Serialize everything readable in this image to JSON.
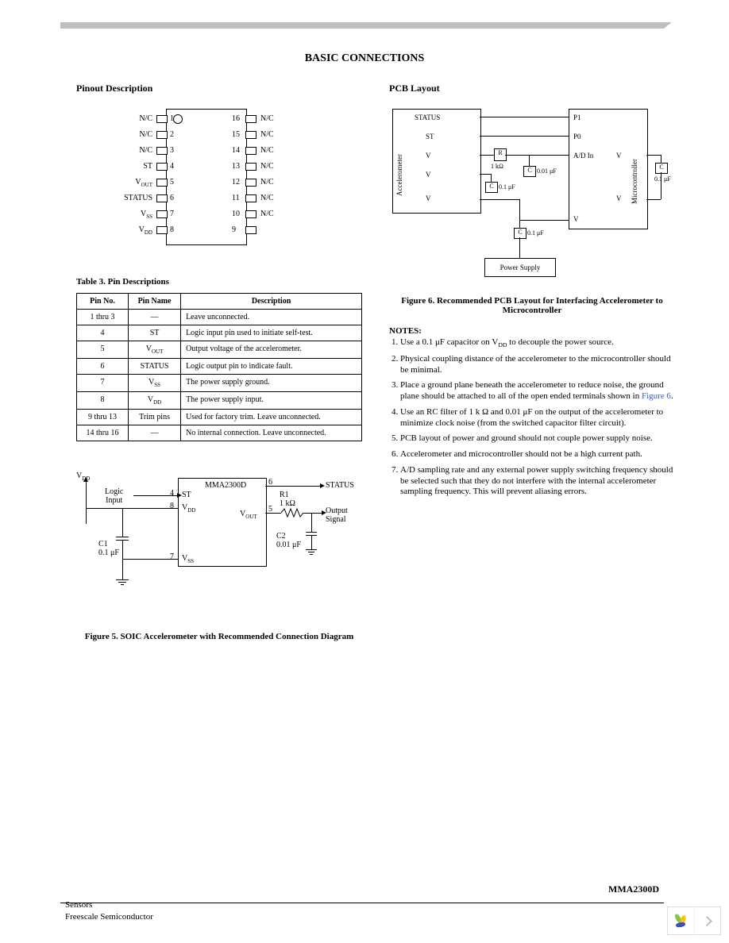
{
  "page_title": "BASIC CONNECTIONS",
  "left": {
    "pinout_heading": "Pinout Description",
    "pinout": {
      "left_labels": [
        "N/C",
        "N/C",
        "N/C",
        "ST",
        "V",
        "STATUS",
        "V",
        "V"
      ],
      "left_sub": [
        "",
        "",
        "",
        "",
        "OUT",
        "",
        "SS",
        "DD"
      ],
      "right_labels": [
        "N/C",
        "N/C",
        "N/C",
        "N/C",
        "N/C",
        "N/C",
        "N/C",
        ""
      ],
      "left_nums": [
        "1",
        "2",
        "3",
        "4",
        "5",
        "6",
        "7",
        "8"
      ],
      "right_nums": [
        "16",
        "15",
        "14",
        "13",
        "12",
        "11",
        "10",
        "9"
      ]
    },
    "table_caption": "Table 3. Pin Descriptions",
    "table": {
      "headers": [
        "Pin No.",
        "Pin Name",
        "Description"
      ],
      "rows": [
        [
          "1 thru 3",
          "—",
          "Leave unconnected."
        ],
        [
          "4",
          "ST",
          "Logic input pin used to initiate self-test."
        ],
        [
          "5",
          "V<sub>OUT</sub>",
          "Output voltage of the accelerometer."
        ],
        [
          "6",
          "STATUS",
          "Logic output pin to indicate fault."
        ],
        [
          "7",
          "V<sub>SS</sub>",
          "The power supply ground."
        ],
        [
          "8",
          "V<sub>DD</sub>",
          "The power supply input."
        ],
        [
          "9 thru 13",
          "Trim pins",
          "Used for factory trim. Leave unconnected."
        ],
        [
          "14 thru 16",
          "—",
          "No internal connection. Leave unconnected."
        ]
      ]
    },
    "fig5": {
      "part": "MMA2300D",
      "vdd": "V",
      "vdd_sub": "DD",
      "logic_input": "Logic\nInput",
      "st": "ST",
      "vout": "V",
      "vout_sub": "OUT",
      "vss": "V",
      "vss_sub": "SS",
      "vdd_pin": "V",
      "vdd_pin_sub": "DD",
      "pin4": "4",
      "pin5": "5",
      "pin6": "6",
      "pin7": "7",
      "pin8": "8",
      "r1": "R1\n1 kΩ",
      "c1": "C1\n0.1 μF",
      "c2": "C2\n0.01 μF",
      "status": "STATUS",
      "output": "Output\nSignal",
      "caption": "Figure 5. SOIC Accelerometer with Recommended Connection Diagram"
    }
  },
  "right": {
    "pcb_heading": "PCB Layout",
    "pcb": {
      "accel_side": "Accelerometer",
      "status": "STATUS",
      "st": "ST",
      "vout": "V",
      "vdd": "V",
      "vss": "V",
      "mcu_side": "Microcontroller",
      "p1": "P1",
      "p0": "P0",
      "adin": "A/D In",
      "vdd2": "V",
      "vss2": "V",
      "r": "R",
      "rval": "1 kΩ",
      "c": "C",
      "c001": "0.01 μF",
      "c01a": "0.1 μF",
      "c01b": "0.1  μF",
      "c01c": "0.1 μF",
      "ps": "Power Supply"
    },
    "fig6_caption": "Figure 6. Recommended PCB Layout for Interfacing Accelerometer to Microcontroller",
    "notes_heading": "NOTES:",
    "notes": [
      "Use a 0.1     μF capacitor on V<sub>DD</sub> to decouple the power source.",
      "Physical coupling distance of the accelerometer to the microcontroller should be minimal.",
      "Place a ground plane beneath the accelerometer to reduce noise, the ground plane should be attached to all of the open ended terminals shown in <span class=\"link\">Figure 6</span>.",
      "Use an RC filter of 1 k     Ω and 0.01 μF on the output of the accelerometer to minimize clock noise (from the switched capacitor filter circuit).",
      "PCB layout of power and ground should not couple power supply noise.",
      "Accelerometer and microcontroller should not be a high current path.",
      "A/D sampling rate and any external power supply switching frequency should be selected such that they do not interfere with the internal accelerometer sampling frequency. This will prevent aliasing errors."
    ]
  },
  "footer": {
    "part": "MMA2300D",
    "line1": "Sensors",
    "line2": "Freescale Semiconductor"
  }
}
